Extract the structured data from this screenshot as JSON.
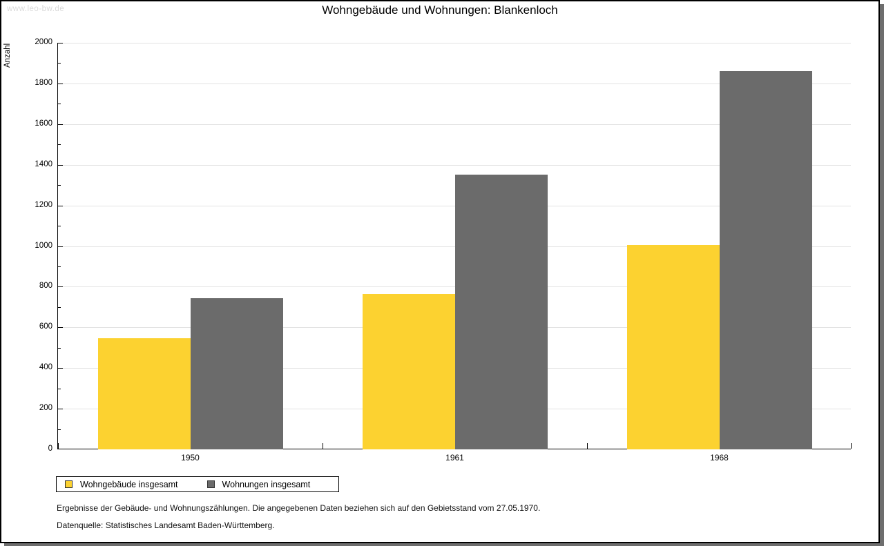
{
  "watermark": "www.leo-bw.de",
  "title": "Wohngebäude und Wohnungen: Blankenloch",
  "chart_data": {
    "type": "bar",
    "title": "Wohngebäude und Wohnungen: Blankenloch",
    "xlabel": "",
    "ylabel": "Anzahl",
    "categories": [
      "1950",
      "1961",
      "1968"
    ],
    "series": [
      {
        "name": "Wohngebäude insgesamt",
        "color": "#FCD230",
        "values": [
          548,
          763,
          1005
        ]
      },
      {
        "name": "Wohnungen insgesamt",
        "color": "#6B6B6B",
        "values": [
          743,
          1351,
          1861
        ]
      }
    ],
    "ylim": [
      0,
      2000
    ],
    "yticks": [
      0,
      200,
      400,
      600,
      800,
      1000,
      1200,
      1400,
      1600,
      1800,
      2000
    ],
    "minor_tick_step": 100,
    "grid": true,
    "gridline_color": "#E2E2E2",
    "legend_position": "bottom-left"
  },
  "footer": {
    "line1": "Ergebnisse der Gebäude- und Wohnungszählungen. Die angegebenen Daten beziehen sich auf den Gebietsstand vom 27.05.1970.",
    "line2": "Datenquelle: Statistisches Landesamt Baden-Württemberg."
  }
}
